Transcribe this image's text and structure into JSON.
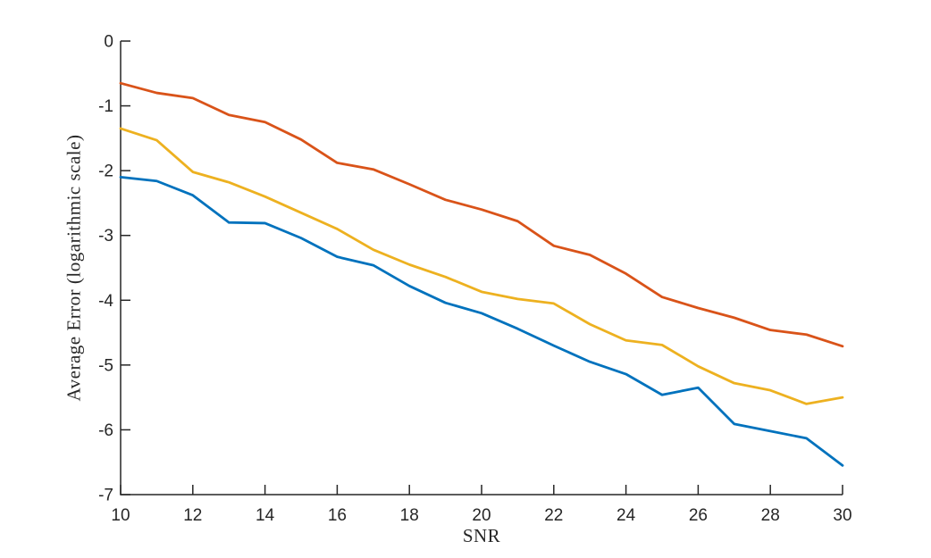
{
  "figure": {
    "background": "#ffffff",
    "axis_color": "#262626",
    "tick_label_color": "#262626"
  },
  "chart_data": {
    "type": "line",
    "title": "",
    "xlabel": "SNR",
    "ylabel": "Average Error (logarithmic scale)",
    "xlim": [
      10,
      30
    ],
    "ylim": [
      -7,
      0
    ],
    "xticks": [
      10,
      12,
      14,
      16,
      18,
      20,
      22,
      24,
      26,
      28,
      30
    ],
    "yticks": [
      0,
      -1,
      -2,
      -3,
      -4,
      -5,
      -6,
      -7
    ],
    "grid": false,
    "legend": null,
    "box": false,
    "x": [
      10,
      11,
      12,
      13,
      14,
      15,
      16,
      17,
      18,
      19,
      20,
      21,
      22,
      23,
      24,
      25,
      26,
      27,
      28,
      29,
      30
    ],
    "series": [
      {
        "name": "orange-line",
        "color": "#D95319",
        "values": [
          -0.65,
          -0.8,
          -0.88,
          -1.14,
          -1.25,
          -1.52,
          -1.88,
          -1.98,
          -2.21,
          -2.45,
          -2.6,
          -2.78,
          -3.16,
          -3.3,
          -3.59,
          -3.95,
          -4.12,
          -4.27,
          -4.46,
          -4.53,
          -4.71
        ]
      },
      {
        "name": "yellow-line",
        "color": "#EDB120",
        "values": [
          -1.35,
          -1.53,
          -2.02,
          -2.18,
          -2.4,
          -2.65,
          -2.9,
          -3.22,
          -3.45,
          -3.64,
          -3.87,
          -3.98,
          -4.05,
          -4.37,
          -4.62,
          -4.69,
          -5.02,
          -5.28,
          -5.39,
          -5.6,
          -5.5
        ]
      },
      {
        "name": "blue-line",
        "color": "#0072BD",
        "values": [
          -2.1,
          -2.16,
          -2.38,
          -2.8,
          -2.81,
          -3.04,
          -3.33,
          -3.46,
          -3.78,
          -4.04,
          -4.2,
          -4.44,
          -4.7,
          -4.95,
          -5.14,
          -5.46,
          -5.35,
          -5.91,
          -6.02,
          -6.13,
          -6.55
        ]
      }
    ]
  }
}
